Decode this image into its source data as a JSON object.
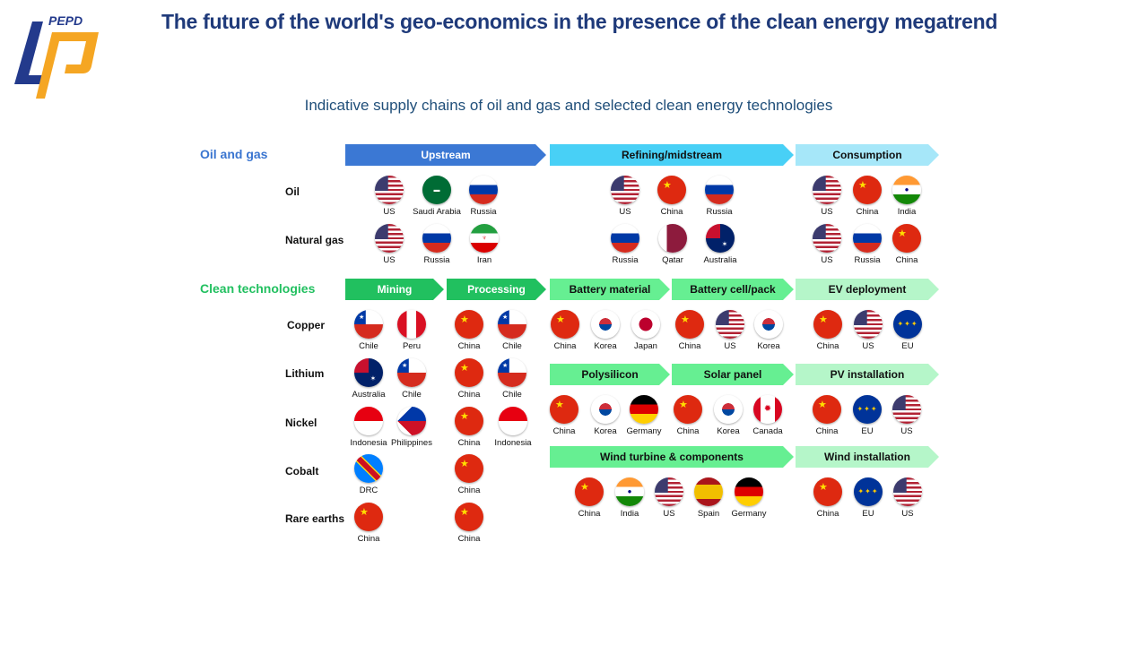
{
  "logo_text": "PEPD",
  "title": "The future of the world's geo-economics in the presence of the clean energy megatrend",
  "subtitle": "Indicative supply chains of oil and gas and selected clean energy technologies",
  "sections": {
    "oil_gas": "Oil and gas",
    "clean": "Clean technologies"
  },
  "colors": {
    "oil_gas": "#3a75d0",
    "clean": "#22c060"
  },
  "stages": [
    {
      "label": "Upstream",
      "color": "#3b78d4",
      "text": "#ffffff"
    },
    {
      "label": "Refining/midstream",
      "color": "#48d0f6",
      "text": "#111111"
    },
    {
      "label": "Consumption",
      "color": "#a6e7f9",
      "text": "#111111"
    },
    {
      "label": "Mining",
      "color": "#21c05f",
      "text": "#ffffff"
    },
    {
      "label": "Processing",
      "color": "#21c05f",
      "text": "#ffffff"
    },
    {
      "label": "Battery material",
      "color": "#66ef92",
      "text": "#111111"
    },
    {
      "label": "Battery cell/pack",
      "color": "#66ef92",
      "text": "#111111"
    },
    {
      "label": "EV deployment",
      "color": "#b5f6c9",
      "text": "#111111"
    },
    {
      "label": "Polysilicon",
      "color": "#66ef92",
      "text": "#111111"
    },
    {
      "label": "Solar panel",
      "color": "#66ef92",
      "text": "#111111"
    },
    {
      "label": "PV installation",
      "color": "#b5f6c9",
      "text": "#111111"
    },
    {
      "label": "Wind turbine & components",
      "color": "#66ef92",
      "text": "#111111"
    },
    {
      "label": "Wind installation",
      "color": "#b5f6c9",
      "text": "#111111"
    }
  ],
  "rows": [
    "Oil",
    "Natural gas",
    "Copper",
    "Lithium",
    "Nickel",
    "Cobalt",
    "Rare earths"
  ],
  "flag_groups": [
    {
      "row": "Oil",
      "stage": "Upstream",
      "countries": [
        "US",
        "Saudi Arabia",
        "Russia"
      ]
    },
    {
      "row": "Oil",
      "stage": "Refining/midstream",
      "countries": [
        "US",
        "China",
        "Russia"
      ]
    },
    {
      "row": "Oil",
      "stage": "Consumption",
      "countries": [
        "US",
        "China",
        "India"
      ]
    },
    {
      "row": "Natural gas",
      "stage": "Upstream",
      "countries": [
        "US",
        "Russia",
        "Iran"
      ]
    },
    {
      "row": "Natural gas",
      "stage": "Refining/midstream",
      "countries": [
        "Russia",
        "Qatar",
        "Australia"
      ]
    },
    {
      "row": "Natural gas",
      "stage": "Consumption",
      "countries": [
        "US",
        "Russia",
        "China"
      ]
    },
    {
      "row": "Copper",
      "stage": "Mining",
      "countries": [
        "Chile",
        "Peru"
      ]
    },
    {
      "row": "Copper",
      "stage": "Processing",
      "countries": [
        "China",
        "Chile"
      ]
    },
    {
      "row": "Battery",
      "stage": "Battery material",
      "countries": [
        "China",
        "Korea",
        "Japan"
      ]
    },
    {
      "row": "Battery",
      "stage": "Battery cell/pack",
      "countries": [
        "China",
        "US",
        "Korea"
      ]
    },
    {
      "row": "Battery",
      "stage": "EV deployment",
      "countries": [
        "China",
        "US",
        "EU"
      ]
    },
    {
      "row": "Lithium",
      "stage": "Mining",
      "countries": [
        "Australia",
        "Chile"
      ]
    },
    {
      "row": "Lithium",
      "stage": "Processing",
      "countries": [
        "China",
        "Chile"
      ]
    },
    {
      "row": "Nickel",
      "stage": "Mining",
      "countries": [
        "Indonesia",
        "Philippines"
      ]
    },
    {
      "row": "Nickel",
      "stage": "Processing",
      "countries": [
        "China",
        "Indonesia"
      ]
    },
    {
      "row": "Solar",
      "stage": "Polysilicon",
      "countries": [
        "China",
        "Korea",
        "Germany"
      ]
    },
    {
      "row": "Solar",
      "stage": "Solar panel",
      "countries": [
        "China",
        "Korea",
        "Canada"
      ]
    },
    {
      "row": "Solar",
      "stage": "PV installation",
      "countries": [
        "China",
        "EU",
        "US"
      ]
    },
    {
      "row": "Cobalt",
      "stage": "Mining",
      "countries": [
        "DRC"
      ]
    },
    {
      "row": "Cobalt",
      "stage": "Processing",
      "countries": [
        "China"
      ]
    },
    {
      "row": "Wind",
      "stage": "Wind turbine & components",
      "countries": [
        "China",
        "India",
        "US",
        "Spain",
        "Germany"
      ]
    },
    {
      "row": "Wind",
      "stage": "Wind installation",
      "countries": [
        "China",
        "EU",
        "US"
      ]
    },
    {
      "row": "Rare earths",
      "stage": "Mining",
      "countries": [
        "China"
      ]
    },
    {
      "row": "Rare earths",
      "stage": "Processing",
      "countries": [
        "China"
      ]
    }
  ]
}
